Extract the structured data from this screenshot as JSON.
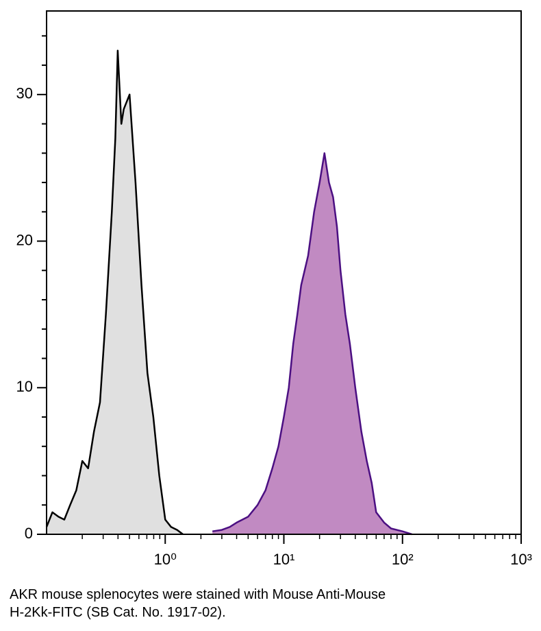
{
  "chart_data": {
    "type": "histogram-line",
    "caption": [
      "AKR mouse splenocytes were stained with Mouse Anti-Mouse",
      "H-2Kk-FITC (SB Cat. No. 1917-02)."
    ],
    "xscale": "log",
    "xlim": [
      0.1,
      1000
    ],
    "ylim": [
      0,
      35.7
    ],
    "xticks": [
      {
        "value": 1,
        "label": "10⁰"
      },
      {
        "value": 10,
        "label": "10¹"
      },
      {
        "value": 100,
        "label": "10²"
      },
      {
        "value": 1000,
        "label": "10³"
      }
    ],
    "xminor": [
      0.2,
      0.3,
      0.4,
      0.5,
      0.6,
      0.7,
      0.8,
      0.9,
      2,
      3,
      4,
      5,
      6,
      7,
      8,
      9,
      20,
      30,
      40,
      50,
      60,
      70,
      80,
      90,
      200,
      300,
      400,
      500,
      600,
      700,
      800,
      900
    ],
    "yticks": [
      0,
      10,
      20,
      30
    ],
    "yminor": [
      2,
      4,
      6,
      8,
      12,
      14,
      16,
      18,
      22,
      24,
      26,
      28,
      32,
      34
    ],
    "series": [
      {
        "color": "#000000",
        "fill": "#e0e0e0",
        "x": [
          0.1,
          0.112,
          0.126,
          0.141,
          0.158,
          0.178,
          0.2,
          0.224,
          0.251,
          0.282,
          0.316,
          0.355,
          0.38,
          0.398,
          0.427,
          0.447,
          0.501,
          0.562,
          0.631,
          0.708,
          0.794,
          0.891,
          1,
          1.12,
          1.26,
          1.41
        ],
        "values": [
          0.5,
          1.5,
          1.2,
          1,
          2,
          3,
          5,
          4.5,
          7,
          9,
          15,
          22,
          27,
          33,
          28,
          29,
          30,
          24,
          17,
          11,
          8,
          4,
          1,
          0.5,
          0.3,
          0
        ]
      },
      {
        "color": "#4b0f82",
        "fill": "#c18ac2",
        "x": [
          2.5,
          3,
          3.5,
          4,
          5,
          6,
          7,
          8,
          9,
          10,
          11,
          12,
          13,
          14,
          16,
          18,
          20,
          22,
          24,
          26,
          28,
          30,
          33,
          36,
          40,
          45,
          50,
          55,
          60,
          70,
          80,
          100,
          120
        ],
        "values": [
          0.2,
          0.3,
          0.5,
          0.8,
          1.2,
          2,
          3,
          4.5,
          6,
          8,
          10,
          13,
          15,
          17,
          19,
          22,
          24,
          26,
          24,
          23,
          21,
          18,
          15,
          13,
          10,
          7,
          5,
          3.5,
          1.5,
          0.8,
          0.4,
          0.2,
          0
        ]
      }
    ]
  }
}
